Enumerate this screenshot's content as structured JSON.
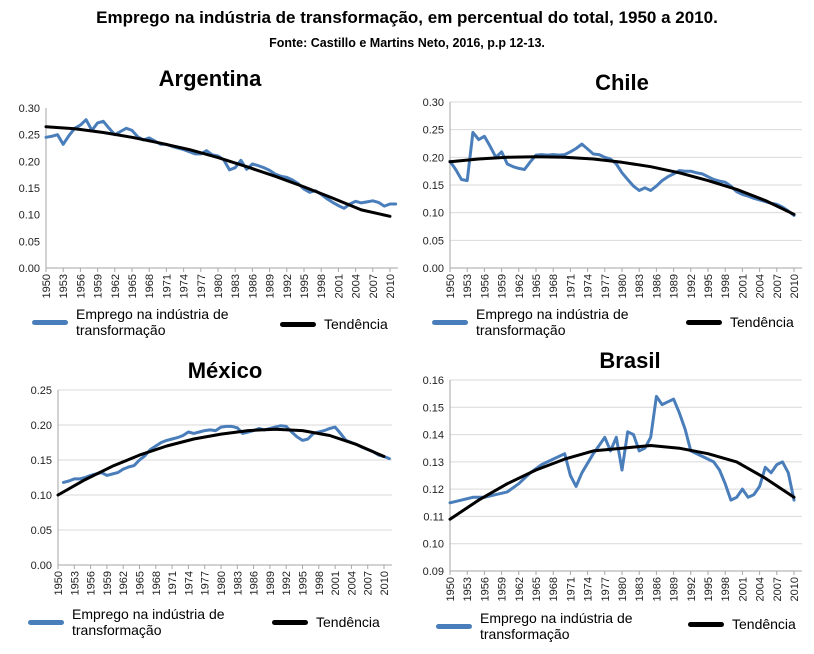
{
  "title": "Emprego  na  indústria  de transformação,   em percentual  do total,  1950 a  2010.",
  "source": "Fonte: Castillo e  Martins Neto, 2016, p.p 12-13.",
  "colors": {
    "series": "#4a7ebb",
    "trend": "#000000",
    "axis": "#a6a6a6",
    "grid": "#d9d9d9"
  },
  "legend": {
    "series_label": "Emprego na indústria de transformação",
    "trend_label": "Tendência"
  },
  "chart_data": [
    {
      "type": "line",
      "title": "Argentina",
      "xtick_labels": [
        "1950",
        "1953",
        "1956",
        "1959",
        "1962",
        "1965",
        "1968",
        "1971",
        "1974",
        "1977",
        "1980",
        "1983",
        "1986",
        "1989",
        "1992",
        "1995",
        "1998",
        "2001",
        "2004",
        "2007",
        "2010"
      ],
      "ytick_labels": [
        "0.00",
        "0.05",
        "0.10",
        "0.15",
        "0.20",
        "0.25",
        "0.30"
      ],
      "ylim": [
        0,
        0.3
      ],
      "grid": false,
      "legend_position": "bottom",
      "series": [
        {
          "role": "data",
          "x": [
            1950,
            1951,
            1952,
            1953,
            1954,
            1955,
            1956,
            1957,
            1958,
            1959,
            1960,
            1961,
            1962,
            1963,
            1964,
            1965,
            1966,
            1967,
            1968,
            1969,
            1970,
            1971,
            1972,
            1973,
            1974,
            1975,
            1976,
            1977,
            1978,
            1979,
            1980,
            1981,
            1982,
            1983,
            1984,
            1985,
            1986,
            1987,
            1988,
            1989,
            1990,
            1991,
            1992,
            1993,
            1994,
            1995,
            1996,
            1997,
            1998,
            1999,
            2000,
            2001,
            2002,
            2003,
            2004,
            2005,
            2006,
            2007,
            2008,
            2009,
            2010,
            2011
          ],
          "y": [
            0.245,
            0.247,
            0.25,
            0.232,
            0.248,
            0.262,
            0.268,
            0.278,
            0.258,
            0.272,
            0.275,
            0.262,
            0.25,
            0.256,
            0.262,
            0.258,
            0.246,
            0.24,
            0.244,
            0.238,
            0.232,
            0.232,
            0.228,
            0.225,
            0.222,
            0.218,
            0.214,
            0.214,
            0.22,
            0.212,
            0.21,
            0.203,
            0.184,
            0.188,
            0.202,
            0.185,
            0.195,
            0.192,
            0.188,
            0.183,
            0.176,
            0.172,
            0.17,
            0.165,
            0.158,
            0.148,
            0.142,
            0.145,
            0.138,
            0.13,
            0.123,
            0.117,
            0.112,
            0.12,
            0.125,
            0.122,
            0.124,
            0.126,
            0.123,
            0.116,
            0.12,
            0.12
          ]
        },
        {
          "role": "trend",
          "x": [
            1950,
            1955,
            1960,
            1965,
            1970,
            1975,
            1980,
            1985,
            1990,
            1995,
            2000,
            2005,
            2010
          ],
          "y": [
            0.265,
            0.261,
            0.254,
            0.245,
            0.234,
            0.222,
            0.207,
            0.19,
            0.172,
            0.152,
            0.131,
            0.109,
            0.097
          ]
        }
      ]
    },
    {
      "type": "line",
      "title": "Chile",
      "xtick_labels": [
        "1950",
        "1953",
        "1956",
        "1959",
        "1962",
        "1965",
        "1968",
        "1971",
        "1974",
        "1977",
        "1980",
        "1983",
        "1986",
        "1989",
        "1992",
        "1995",
        "1998",
        "2001",
        "2004",
        "2007",
        "2010"
      ],
      "ytick_labels": [
        "0.00",
        "0.05",
        "0.10",
        "0.15",
        "0.20",
        "0.25",
        "0.30"
      ],
      "ylim": [
        0,
        0.3
      ],
      "grid": true,
      "legend_position": "bottom",
      "series": [
        {
          "role": "data",
          "x": [
            1950,
            1951,
            1952,
            1953,
            1954,
            1955,
            1956,
            1957,
            1958,
            1959,
            1960,
            1961,
            1962,
            1963,
            1964,
            1965,
            1966,
            1967,
            1968,
            1969,
            1970,
            1971,
            1972,
            1973,
            1974,
            1975,
            1976,
            1977,
            1978,
            1979,
            1980,
            1981,
            1982,
            1983,
            1984,
            1985,
            1986,
            1987,
            1988,
            1989,
            1990,
            1991,
            1992,
            1993,
            1994,
            1995,
            1996,
            1997,
            1998,
            1999,
            2000,
            2001,
            2002,
            2003,
            2004,
            2005,
            2006,
            2007,
            2008,
            2009,
            2010
          ],
          "y": [
            0.193,
            0.178,
            0.16,
            0.158,
            0.245,
            0.232,
            0.238,
            0.22,
            0.2,
            0.21,
            0.188,
            0.183,
            0.18,
            0.178,
            0.192,
            0.204,
            0.205,
            0.204,
            0.205,
            0.204,
            0.205,
            0.21,
            0.216,
            0.224,
            0.215,
            0.206,
            0.205,
            0.2,
            0.197,
            0.188,
            0.172,
            0.16,
            0.148,
            0.14,
            0.145,
            0.14,
            0.148,
            0.158,
            0.165,
            0.17,
            0.176,
            0.175,
            0.175,
            0.172,
            0.17,
            0.165,
            0.16,
            0.157,
            0.155,
            0.148,
            0.138,
            0.133,
            0.13,
            0.126,
            0.123,
            0.12,
            0.117,
            0.115,
            0.11,
            0.103,
            0.095
          ]
        },
        {
          "role": "trend",
          "x": [
            1950,
            1955,
            1960,
            1965,
            1970,
            1975,
            1980,
            1985,
            1990,
            1995,
            2000,
            2005,
            2010
          ],
          "y": [
            0.192,
            0.197,
            0.2,
            0.201,
            0.2,
            0.197,
            0.191,
            0.183,
            0.172,
            0.158,
            0.142,
            0.122,
            0.097
          ]
        }
      ]
    },
    {
      "type": "line",
      "title": "México",
      "xtick_labels": [
        "1950",
        "1953",
        "1956",
        "1959",
        "1962",
        "1965",
        "1968",
        "1971",
        "1974",
        "1977",
        "1980",
        "1983",
        "1986",
        "1989",
        "1992",
        "1995",
        "1998",
        "2001",
        "2004",
        "2007",
        "2010"
      ],
      "ytick_labels": [
        "0.00",
        "0.05",
        "0.10",
        "0.15",
        "0.20",
        "0.25"
      ],
      "ylim": [
        0,
        0.25
      ],
      "grid": true,
      "legend_position": "bottom",
      "series": [
        {
          "role": "data",
          "x": [
            1951,
            1952,
            1953,
            1954,
            1955,
            1956,
            1957,
            1958,
            1959,
            1960,
            1961,
            1962,
            1963,
            1964,
            1965,
            1966,
            1967,
            1968,
            1969,
            1970,
            1971,
            1972,
            1973,
            1974,
            1975,
            1976,
            1977,
            1978,
            1979,
            1980,
            1981,
            1982,
            1983,
            1984,
            1985,
            1986,
            1987,
            1988,
            1989,
            1990,
            1991,
            1992,
            1993,
            1994,
            1995,
            1996,
            1997,
            1998,
            1999,
            2000,
            2001,
            2002,
            2003,
            2004,
            2005,
            2006,
            2007,
            2008,
            2009,
            2010,
            2011
          ],
          "y": [
            0.118,
            0.12,
            0.123,
            0.123,
            0.125,
            0.128,
            0.13,
            0.132,
            0.128,
            0.13,
            0.132,
            0.137,
            0.14,
            0.142,
            0.15,
            0.156,
            0.165,
            0.17,
            0.175,
            0.178,
            0.18,
            0.182,
            0.185,
            0.19,
            0.188,
            0.19,
            0.192,
            0.193,
            0.192,
            0.197,
            0.198,
            0.198,
            0.196,
            0.188,
            0.19,
            0.192,
            0.195,
            0.193,
            0.195,
            0.197,
            0.199,
            0.198,
            0.19,
            0.183,
            0.178,
            0.18,
            0.188,
            0.19,
            0.192,
            0.195,
            0.197,
            0.188,
            0.178,
            0.175,
            0.172,
            0.168,
            0.165,
            0.162,
            0.157,
            0.155,
            0.152
          ]
        },
        {
          "role": "trend",
          "x": [
            1950,
            1955,
            1960,
            1965,
            1970,
            1975,
            1980,
            1985,
            1990,
            1995,
            2000,
            2005,
            2010
          ],
          "y": [
            0.1,
            0.122,
            0.141,
            0.157,
            0.17,
            0.18,
            0.187,
            0.192,
            0.194,
            0.192,
            0.185,
            0.172,
            0.155
          ]
        }
      ]
    },
    {
      "type": "line",
      "title": "Brasil",
      "xtick_labels": [
        "1950",
        "1953",
        "1956",
        "1959",
        "1962",
        "1965",
        "1968",
        "1971",
        "1974",
        "1977",
        "1980",
        "1983",
        "1986",
        "1989",
        "1992",
        "1995",
        "1998",
        "2001",
        "2004",
        "2007",
        "2010"
      ],
      "ytick_labels": [
        "0.09",
        "0.10",
        "0.11",
        "0.12",
        "0.13",
        "0.14",
        "0.15",
        "0.16"
      ],
      "ylim": [
        0.09,
        0.16
      ],
      "grid": true,
      "legend_position": "bottom",
      "series": [
        {
          "role": "data",
          "x": [
            1950,
            1952,
            1954,
            1956,
            1958,
            1960,
            1962,
            1964,
            1966,
            1968,
            1970,
            1971,
            1972,
            1973,
            1975,
            1976,
            1977,
            1978,
            1979,
            1980,
            1981,
            1982,
            1983,
            1984,
            1985,
            1986,
            1987,
            1988,
            1989,
            1990,
            1991,
            1992,
            1994,
            1996,
            1997,
            1998,
            1999,
            2000,
            2001,
            2002,
            2003,
            2004,
            2005,
            2006,
            2007,
            2008,
            2009,
            2010
          ],
          "y": [
            0.115,
            0.116,
            0.117,
            0.117,
            0.118,
            0.119,
            0.122,
            0.126,
            0.129,
            0.131,
            0.133,
            0.125,
            0.121,
            0.126,
            0.133,
            0.136,
            0.139,
            0.134,
            0.139,
            0.127,
            0.141,
            0.14,
            0.134,
            0.135,
            0.139,
            0.154,
            0.151,
            0.152,
            0.153,
            0.148,
            0.142,
            0.134,
            0.132,
            0.13,
            0.127,
            0.122,
            0.116,
            0.117,
            0.12,
            0.117,
            0.118,
            0.121,
            0.128,
            0.126,
            0.129,
            0.13,
            0.126,
            0.116
          ]
        },
        {
          "role": "trend",
          "x": [
            1950,
            1955,
            1960,
            1965,
            1970,
            1975,
            1980,
            1985,
            1990,
            1995,
            2000,
            2005,
            2010
          ],
          "y": [
            0.109,
            0.116,
            0.122,
            0.127,
            0.131,
            0.134,
            0.135,
            0.136,
            0.135,
            0.133,
            0.13,
            0.124,
            0.117
          ]
        }
      ]
    }
  ]
}
